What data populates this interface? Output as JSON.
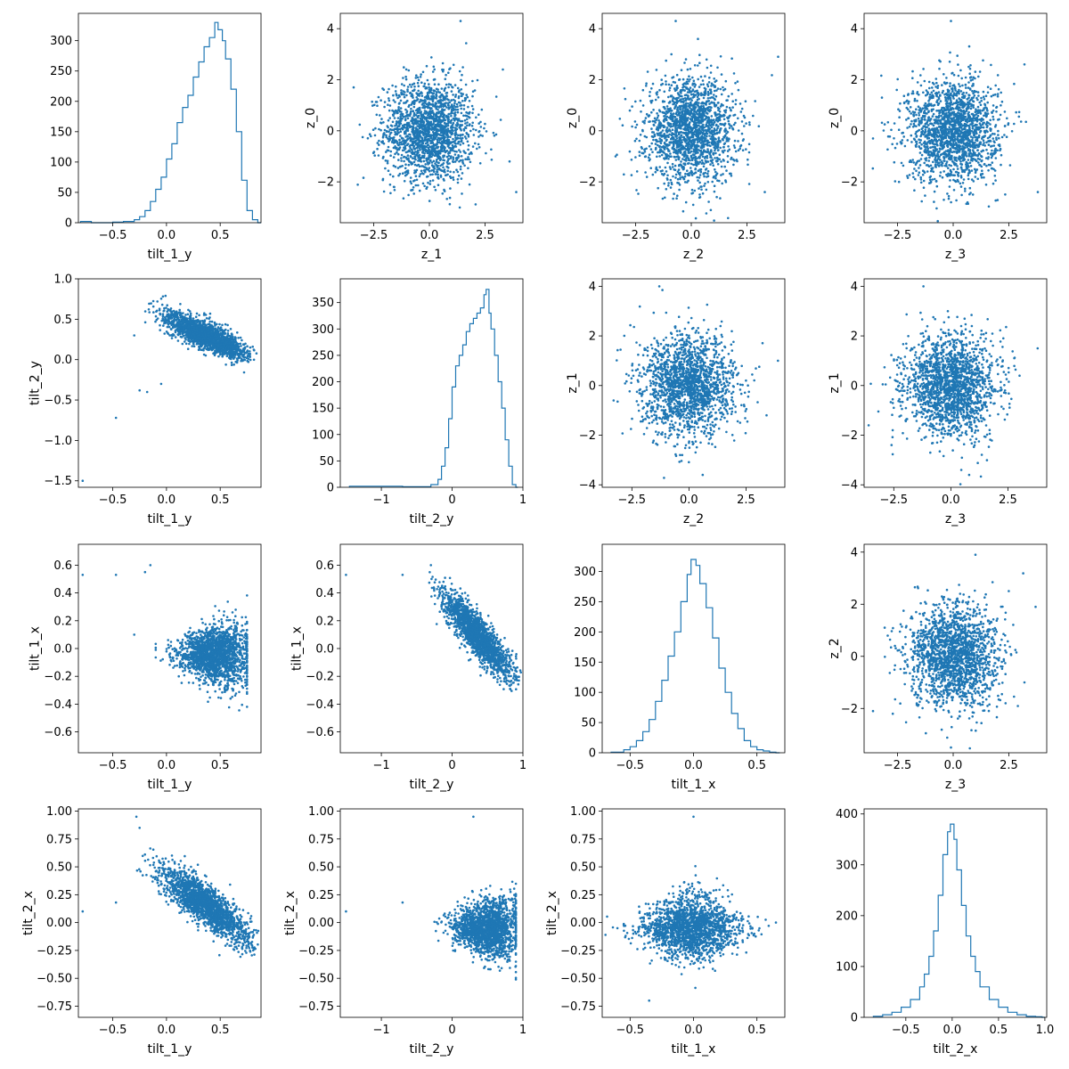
{
  "figure": {
    "type": "pairplot",
    "color": "#1f77b4",
    "grid": false
  },
  "chart_data": [
    {
      "row": 0,
      "col": 0,
      "type": "histogram",
      "xlabel": "tilt_1_y",
      "ylabel": "",
      "xlim": [
        -0.82,
        0.88
      ],
      "ylim": [
        0,
        345
      ],
      "xticks": [
        -0.5,
        0.0,
        0.5
      ],
      "xticklabels": [
        "−0.5",
        "0.0",
        "0.5"
      ],
      "yticks": [
        0,
        50,
        100,
        150,
        200,
        250,
        300
      ],
      "yticklabels": [
        "0",
        "50",
        "100",
        "150",
        "200",
        "250",
        "300"
      ],
      "hist": {
        "x": [
          -0.8,
          -0.7,
          -0.6,
          -0.5,
          -0.4,
          -0.3,
          -0.25,
          -0.2,
          -0.15,
          -0.1,
          -0.05,
          0.0,
          0.05,
          0.1,
          0.15,
          0.2,
          0.25,
          0.3,
          0.35,
          0.4,
          0.45,
          0.48,
          0.52,
          0.55,
          0.6,
          0.65,
          0.7,
          0.75,
          0.8,
          0.85
        ],
        "counts": [
          2,
          0,
          0,
          1,
          2,
          5,
          10,
          20,
          35,
          55,
          75,
          105,
          130,
          165,
          190,
          210,
          240,
          265,
          290,
          305,
          330,
          318,
          300,
          270,
          220,
          150,
          70,
          20,
          5,
          0
        ]
      }
    },
    {
      "row": 0,
      "col": 1,
      "type": "scatter",
      "xlabel": "z_1",
      "ylabel": "z_0",
      "xlim": [
        -4.0,
        4.2
      ],
      "ylim": [
        -3.6,
        4.6
      ],
      "xticks": [
        -2.5,
        0.0,
        2.5
      ],
      "xticklabels": [
        "−2.5",
        "0.0",
        "2.5"
      ],
      "yticks": [
        -2,
        0,
        2,
        4
      ],
      "yticklabels": [
        "−2",
        "0",
        "2",
        "4"
      ],
      "scatter": {
        "kind": "gauss",
        "cx": 0,
        "sx": 1,
        "cy": 0,
        "sy": 1,
        "n": 1800,
        "outliers": [
          [
            3.9,
            -2.4
          ],
          [
            1.4,
            4.3
          ],
          [
            -3.4,
            1.7
          ],
          [
            3.3,
            2.4
          ],
          [
            3.6,
            -1.2
          ]
        ]
      }
    },
    {
      "row": 0,
      "col": 2,
      "type": "scatter",
      "xlabel": "z_2",
      "ylabel": "z_0",
      "xlim": [
        -4.0,
        4.2
      ],
      "ylim": [
        -3.6,
        4.6
      ],
      "xticks": [
        -2.5,
        0.0,
        2.5
      ],
      "xticklabels": [
        "−2.5",
        "0.0",
        "2.5"
      ],
      "yticks": [
        -2,
        0,
        2,
        4
      ],
      "yticklabels": [
        "−2",
        "0",
        "2",
        "4"
      ],
      "scatter": {
        "kind": "gauss",
        "cx": 0,
        "sx": 1,
        "cy": 0,
        "sy": 1,
        "n": 1800,
        "outliers": [
          [
            -0.7,
            4.3
          ],
          [
            3.9,
            2.9
          ],
          [
            -3.4,
            -1.0
          ],
          [
            3.3,
            -2.4
          ],
          [
            0.3,
            3.6
          ]
        ]
      }
    },
    {
      "row": 0,
      "col": 3,
      "type": "scatter",
      "xlabel": "z_3",
      "ylabel": "z_0",
      "xlim": [
        -4.0,
        4.2
      ],
      "ylim": [
        -3.6,
        4.6
      ],
      "xticks": [
        -2.5,
        0.0,
        2.5
      ],
      "xticklabels": [
        "−2.5",
        "0.0",
        "2.5"
      ],
      "yticks": [
        -2,
        0,
        2,
        4
      ],
      "yticklabels": [
        "−2",
        "0",
        "2",
        "4"
      ],
      "scatter": {
        "kind": "gauss",
        "cx": 0,
        "sx": 1,
        "cy": 0,
        "sy": 1,
        "n": 1800,
        "outliers": [
          [
            -0.1,
            4.3
          ],
          [
            3.8,
            -2.4
          ],
          [
            -3.2,
            1.3
          ],
          [
            3.2,
            2.6
          ],
          [
            -3.6,
            -0.3
          ]
        ]
      }
    },
    {
      "row": 1,
      "col": 0,
      "type": "scatter",
      "xlabel": "tilt_1_y",
      "ylabel": "tilt_2_y",
      "xlim": [
        -0.82,
        0.88
      ],
      "ylim": [
        -1.58,
        1.0
      ],
      "xticks": [
        -0.5,
        0.0,
        0.5
      ],
      "xticklabels": [
        "−0.5",
        "0.0",
        "0.5"
      ],
      "yticks": [
        -1.5,
        -1.0,
        -0.5,
        0.0,
        0.5,
        1.0
      ],
      "yticklabels": [
        "−1.5",
        "−1.0",
        "−0.5",
        "0.0",
        "0.5",
        "1.0"
      ],
      "scatter": {
        "kind": "anticorr",
        "xmin": -0.15,
        "xmax": 0.78,
        "y_at_min": 0.6,
        "y_at_max": 0.05,
        "spread": 0.18,
        "n": 1800,
        "outliers": [
          [
            -0.78,
            -1.5
          ],
          [
            -0.47,
            -0.72
          ],
          [
            -0.25,
            -0.38
          ],
          [
            -0.18,
            -0.4
          ],
          [
            -0.05,
            -0.3
          ],
          [
            -0.3,
            0.3
          ]
        ]
      }
    },
    {
      "row": 1,
      "col": 1,
      "type": "histogram",
      "xlabel": "tilt_2_y",
      "ylabel": "",
      "xlim": [
        -1.58,
        1.0
      ],
      "ylim": [
        0,
        395
      ],
      "xticks": [
        -1,
        0,
        1
      ],
      "xticklabels": [
        "−1",
        "0",
        "1"
      ],
      "yticks": [
        0,
        50,
        100,
        150,
        200,
        250,
        300,
        350
      ],
      "yticklabels": [
        "0",
        "50",
        "100",
        "150",
        "200",
        "250",
        "300",
        "350"
      ],
      "hist": {
        "x": [
          -1.45,
          -0.7,
          -0.3,
          -0.2,
          -0.15,
          -0.1,
          -0.05,
          0.0,
          0.05,
          0.1,
          0.15,
          0.2,
          0.25,
          0.3,
          0.35,
          0.4,
          0.45,
          0.48,
          0.52,
          0.55,
          0.6,
          0.65,
          0.7,
          0.75,
          0.8,
          0.85,
          0.9
        ],
        "counts": [
          2,
          1,
          5,
          15,
          40,
          75,
          130,
          190,
          230,
          250,
          270,
          295,
          310,
          320,
          330,
          340,
          365,
          375,
          330,
          300,
          250,
          200,
          150,
          90,
          40,
          5,
          0
        ]
      }
    },
    {
      "row": 1,
      "col": 2,
      "type": "scatter",
      "xlabel": "z_2",
      "ylabel": "z_1",
      "xlim": [
        -3.8,
        4.2
      ],
      "ylim": [
        -4.1,
        4.3
      ],
      "xticks": [
        -2.5,
        0.0,
        2.5
      ],
      "xticklabels": [
        "−2.5",
        "0.0",
        "2.5"
      ],
      "yticks": [
        -4,
        -2,
        0,
        2,
        4
      ],
      "yticklabels": [
        "−4",
        "−2",
        "0",
        "2",
        "4"
      ],
      "scatter": {
        "kind": "gauss",
        "cx": 0,
        "sx": 1,
        "cy": 0,
        "sy": 1,
        "n": 1800,
        "outliers": [
          [
            -1.3,
            4.0
          ],
          [
            3.9,
            1.0
          ],
          [
            -3.3,
            -0.6
          ],
          [
            0.6,
            -3.6
          ],
          [
            3.4,
            -1.2
          ]
        ]
      }
    },
    {
      "row": 1,
      "col": 3,
      "type": "scatter",
      "xlabel": "z_3",
      "ylabel": "z_1",
      "xlim": [
        -3.8,
        4.2
      ],
      "ylim": [
        -4.1,
        4.3
      ],
      "xticks": [
        -2.5,
        0.0,
        2.5
      ],
      "xticklabels": [
        "−2.5",
        "0.0",
        "2.5"
      ],
      "yticks": [
        -4,
        -2,
        0,
        2,
        4
      ],
      "yticklabels": [
        "−4",
        "−2",
        "0",
        "2",
        "4"
      ],
      "scatter": {
        "kind": "gauss",
        "cx": 0,
        "sx": 1,
        "cy": 0,
        "sy": 1,
        "n": 1800,
        "outliers": [
          [
            -1.2,
            4.0
          ],
          [
            3.8,
            1.5
          ],
          [
            -3.6,
            -1.6
          ],
          [
            0.8,
            -3.6
          ],
          [
            -2.6,
            -2.4
          ]
        ]
      }
    },
    {
      "row": 2,
      "col": 0,
      "type": "scatter",
      "xlabel": "tilt_1_y",
      "ylabel": "tilt_1_x",
      "xlim": [
        -0.82,
        0.88
      ],
      "ylim": [
        -0.75,
        0.75
      ],
      "xticks": [
        -0.5,
        0.0,
        0.5
      ],
      "xticklabels": [
        "−0.5",
        "0.0",
        "0.5"
      ],
      "yticks": [
        -0.6,
        -0.4,
        -0.2,
        0.0,
        0.2,
        0.4,
        0.6
      ],
      "yticklabels": [
        "−0.6",
        "−0.4",
        "−0.2",
        "0.0",
        "0.2",
        "0.4",
        "0.6"
      ],
      "scatter": {
        "kind": "fan",
        "xmin": -0.1,
        "xmax": 0.75,
        "center": -0.05,
        "spread_left": 0.08,
        "spread_right": 0.28,
        "n": 1800,
        "outliers": [
          [
            -0.78,
            0.53
          ],
          [
            -0.47,
            0.53
          ],
          [
            -0.15,
            0.6
          ],
          [
            -0.2,
            0.55
          ],
          [
            -0.3,
            0.1
          ]
        ]
      }
    },
    {
      "row": 2,
      "col": 1,
      "type": "scatter",
      "xlabel": "tilt_2_y",
      "ylabel": "tilt_1_x",
      "xlim": [
        -1.58,
        1.0
      ],
      "ylim": [
        -0.75,
        0.75
      ],
      "xticks": [
        -1,
        0,
        1
      ],
      "xticklabels": [
        "−1",
        "0",
        "1"
      ],
      "yticks": [
        -0.6,
        -0.4,
        -0.2,
        0.0,
        0.2,
        0.4,
        0.6
      ],
      "yticklabels": [
        "−0.6",
        "−0.4",
        "−0.2",
        "0.0",
        "0.2",
        "0.4",
        "0.6"
      ],
      "scatter": {
        "kind": "anticorr",
        "xmin": -0.3,
        "xmax": 0.9,
        "y_at_min": 0.45,
        "y_at_max": -0.2,
        "spread": 0.16,
        "n": 1800,
        "outliers": [
          [
            -1.5,
            0.53
          ],
          [
            -0.7,
            0.53
          ],
          [
            -0.3,
            0.6
          ]
        ]
      }
    },
    {
      "row": 2,
      "col": 2,
      "type": "histogram",
      "xlabel": "tilt_1_x",
      "ylabel": "",
      "xlim": [
        -0.72,
        0.72
      ],
      "ylim": [
        0,
        345
      ],
      "xticks": [
        -0.5,
        0.0,
        0.5
      ],
      "xticklabels": [
        "−0.5",
        "0.0",
        "0.5"
      ],
      "yticks": [
        0,
        50,
        100,
        150,
        200,
        250,
        300
      ],
      "yticklabels": [
        "0",
        "50",
        "100",
        "150",
        "200",
        "250",
        "300"
      ],
      "hist": {
        "x": [
          -0.65,
          -0.55,
          -0.5,
          -0.45,
          -0.4,
          -0.35,
          -0.3,
          -0.25,
          -0.2,
          -0.15,
          -0.1,
          -0.05,
          -0.02,
          0.02,
          0.05,
          0.1,
          0.15,
          0.2,
          0.25,
          0.3,
          0.35,
          0.4,
          0.45,
          0.5,
          0.55,
          0.6,
          0.65
        ],
        "counts": [
          1,
          5,
          10,
          20,
          35,
          55,
          85,
          120,
          160,
          200,
          250,
          295,
          320,
          310,
          280,
          240,
          190,
          140,
          100,
          65,
          40,
          20,
          10,
          5,
          3,
          1,
          0
        ]
      }
    },
    {
      "row": 2,
      "col": 3,
      "type": "scatter",
      "xlabel": "z_3",
      "ylabel": "z_2",
      "xlim": [
        -4.0,
        4.2
      ],
      "ylim": [
        -3.7,
        4.3
      ],
      "xticks": [
        -2.5,
        0.0,
        2.5
      ],
      "xticklabels": [
        "−2.5",
        "0.0",
        "2.5"
      ],
      "yticks": [
        -2,
        0,
        2,
        4
      ],
      "yticklabels": [
        "−2",
        "0",
        "2",
        "4"
      ],
      "scatter": {
        "kind": "gauss",
        "cx": 0,
        "sx": 1,
        "cy": 0,
        "sy": 1,
        "n": 1800,
        "outliers": [
          [
            1.0,
            3.9
          ],
          [
            3.7,
            1.9
          ],
          [
            -3.6,
            -2.1
          ],
          [
            3.2,
            -1.0
          ],
          [
            -0.1,
            -3.5
          ]
        ]
      }
    },
    {
      "row": 3,
      "col": 0,
      "type": "scatter",
      "xlabel": "tilt_1_y",
      "ylabel": "tilt_2_x",
      "xlim": [
        -0.82,
        0.88
      ],
      "ylim": [
        -0.85,
        1.02
      ],
      "xticks": [
        -0.5,
        0.0,
        0.5
      ],
      "xticklabels": [
        "−0.5",
        "0.0",
        "0.5"
      ],
      "yticks": [
        -0.75,
        -0.5,
        -0.25,
        0.0,
        0.25,
        0.5,
        0.75,
        1.0
      ],
      "yticklabels": [
        "−0.75",
        "−0.50",
        "−0.25",
        "0.00",
        "0.25",
        "0.50",
        "0.75",
        "1.00"
      ],
      "scatter": {
        "kind": "anticorr",
        "xmin": -0.2,
        "xmax": 0.8,
        "y_at_min": 0.55,
        "y_at_max": -0.15,
        "spread": 0.2,
        "n": 1800,
        "outliers": [
          [
            -0.78,
            0.1
          ],
          [
            -0.47,
            0.18
          ],
          [
            -0.28,
            0.95
          ],
          [
            -0.25,
            0.85
          ]
        ]
      }
    },
    {
      "row": 3,
      "col": 1,
      "type": "scatter",
      "xlabel": "tilt_2_y",
      "ylabel": "tilt_2_x",
      "xlim": [
        -1.58,
        1.0
      ],
      "ylim": [
        -0.85,
        1.02
      ],
      "xticks": [
        -1,
        0,
        1
      ],
      "xticklabels": [
        "−1",
        "0",
        "1"
      ],
      "yticks": [
        -0.75,
        -0.5,
        -0.25,
        0.0,
        0.25,
        0.5,
        0.75,
        1.0
      ],
      "yticklabels": [
        "−0.75",
        "−0.50",
        "−0.25",
        "0.00",
        "0.25",
        "0.50",
        "0.75",
        "1.00"
      ],
      "scatter": {
        "kind": "fan",
        "xmin": -0.25,
        "xmax": 0.9,
        "center": -0.05,
        "spread_left": 0.1,
        "spread_right": 0.32,
        "n": 1800,
        "outliers": [
          [
            -1.5,
            0.1
          ],
          [
            -0.7,
            0.18
          ],
          [
            0.3,
            0.95
          ]
        ]
      }
    },
    {
      "row": 3,
      "col": 2,
      "type": "scatter",
      "xlabel": "tilt_1_x",
      "ylabel": "tilt_2_x",
      "xlim": [
        -0.72,
        0.72
      ],
      "ylim": [
        -0.85,
        1.02
      ],
      "xticks": [
        -0.5,
        0.0,
        0.5
      ],
      "xticklabels": [
        "−0.5",
        "0.0",
        "0.5"
      ],
      "yticks": [
        -0.75,
        -0.5,
        -0.25,
        0.0,
        0.25,
        0.5,
        0.75,
        1.0
      ],
      "yticklabels": [
        "−0.75",
        "−0.50",
        "−0.25",
        "0.00",
        "0.25",
        "0.50",
        "0.75",
        "1.00"
      ],
      "scatter": {
        "kind": "diamond",
        "cx": -0.02,
        "cy": -0.05,
        "sx": 0.18,
        "sy": 0.16,
        "n": 1800,
        "outliers": [
          [
            0.0,
            0.95
          ],
          [
            -0.6,
            -0.05
          ],
          [
            0.65,
            0.0
          ],
          [
            -0.35,
            -0.7
          ]
        ]
      }
    },
    {
      "row": 3,
      "col": 3,
      "type": "histogram",
      "xlabel": "tilt_2_x",
      "ylabel": "",
      "xlim": [
        -0.95,
        1.02
      ],
      "ylim": [
        0,
        410
      ],
      "xticks": [
        -0.5,
        0.0,
        0.5,
        1.0
      ],
      "xticklabels": [
        "−0.5",
        "0.0",
        "0.5",
        "1.0"
      ],
      "yticks": [
        0,
        100,
        200,
        300,
        400
      ],
      "yticklabels": [
        "0",
        "100",
        "200",
        "300",
        "400"
      ],
      "hist": {
        "x": [
          -0.85,
          -0.75,
          -0.65,
          -0.55,
          -0.45,
          -0.35,
          -0.3,
          -0.25,
          -0.2,
          -0.15,
          -0.1,
          -0.05,
          -0.02,
          0.02,
          0.05,
          0.1,
          0.15,
          0.2,
          0.25,
          0.3,
          0.4,
          0.5,
          0.6,
          0.7,
          0.8,
          0.9,
          0.97
        ],
        "counts": [
          2,
          5,
          10,
          20,
          35,
          60,
          85,
          120,
          170,
          240,
          320,
          365,
          380,
          350,
          290,
          220,
          160,
          120,
          90,
          60,
          35,
          20,
          10,
          5,
          2,
          1,
          0
        ]
      }
    }
  ]
}
